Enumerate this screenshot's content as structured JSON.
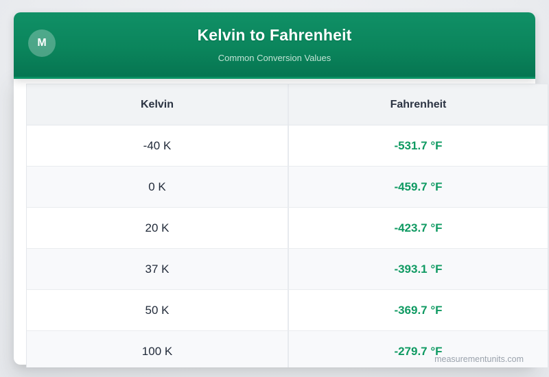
{
  "header": {
    "title": "Kelvin to Fahrenheit",
    "subtitle": "Common Conversion Values",
    "avatar_letter": "M"
  },
  "table": {
    "columns": [
      "Kelvin",
      "Fahrenheit"
    ],
    "rows": [
      {
        "kelvin": "-40 K",
        "fahrenheit": "-531.7 °F"
      },
      {
        "kelvin": "0 K",
        "fahrenheit": "-459.7 °F"
      },
      {
        "kelvin": "20 K",
        "fahrenheit": "-423.7 °F"
      },
      {
        "kelvin": "37 K",
        "fahrenheit": "-393.1 °F"
      },
      {
        "kelvin": "50 K",
        "fahrenheit": "-369.7 °F"
      },
      {
        "kelvin": "100 K",
        "fahrenheit": "-279.7 °F"
      }
    ]
  },
  "watermark": "measurementunits.com",
  "colors": {
    "header_green_top": "#109066",
    "header_green_bottom": "#067551",
    "value_green": "#0f9a62",
    "heading_text": "#2b3342",
    "cell_text": "#222b3a",
    "page_background": "#eaecef",
    "header_row_bg": "#f1f3f5",
    "alt_row_bg": "#f8f9fb"
  }
}
